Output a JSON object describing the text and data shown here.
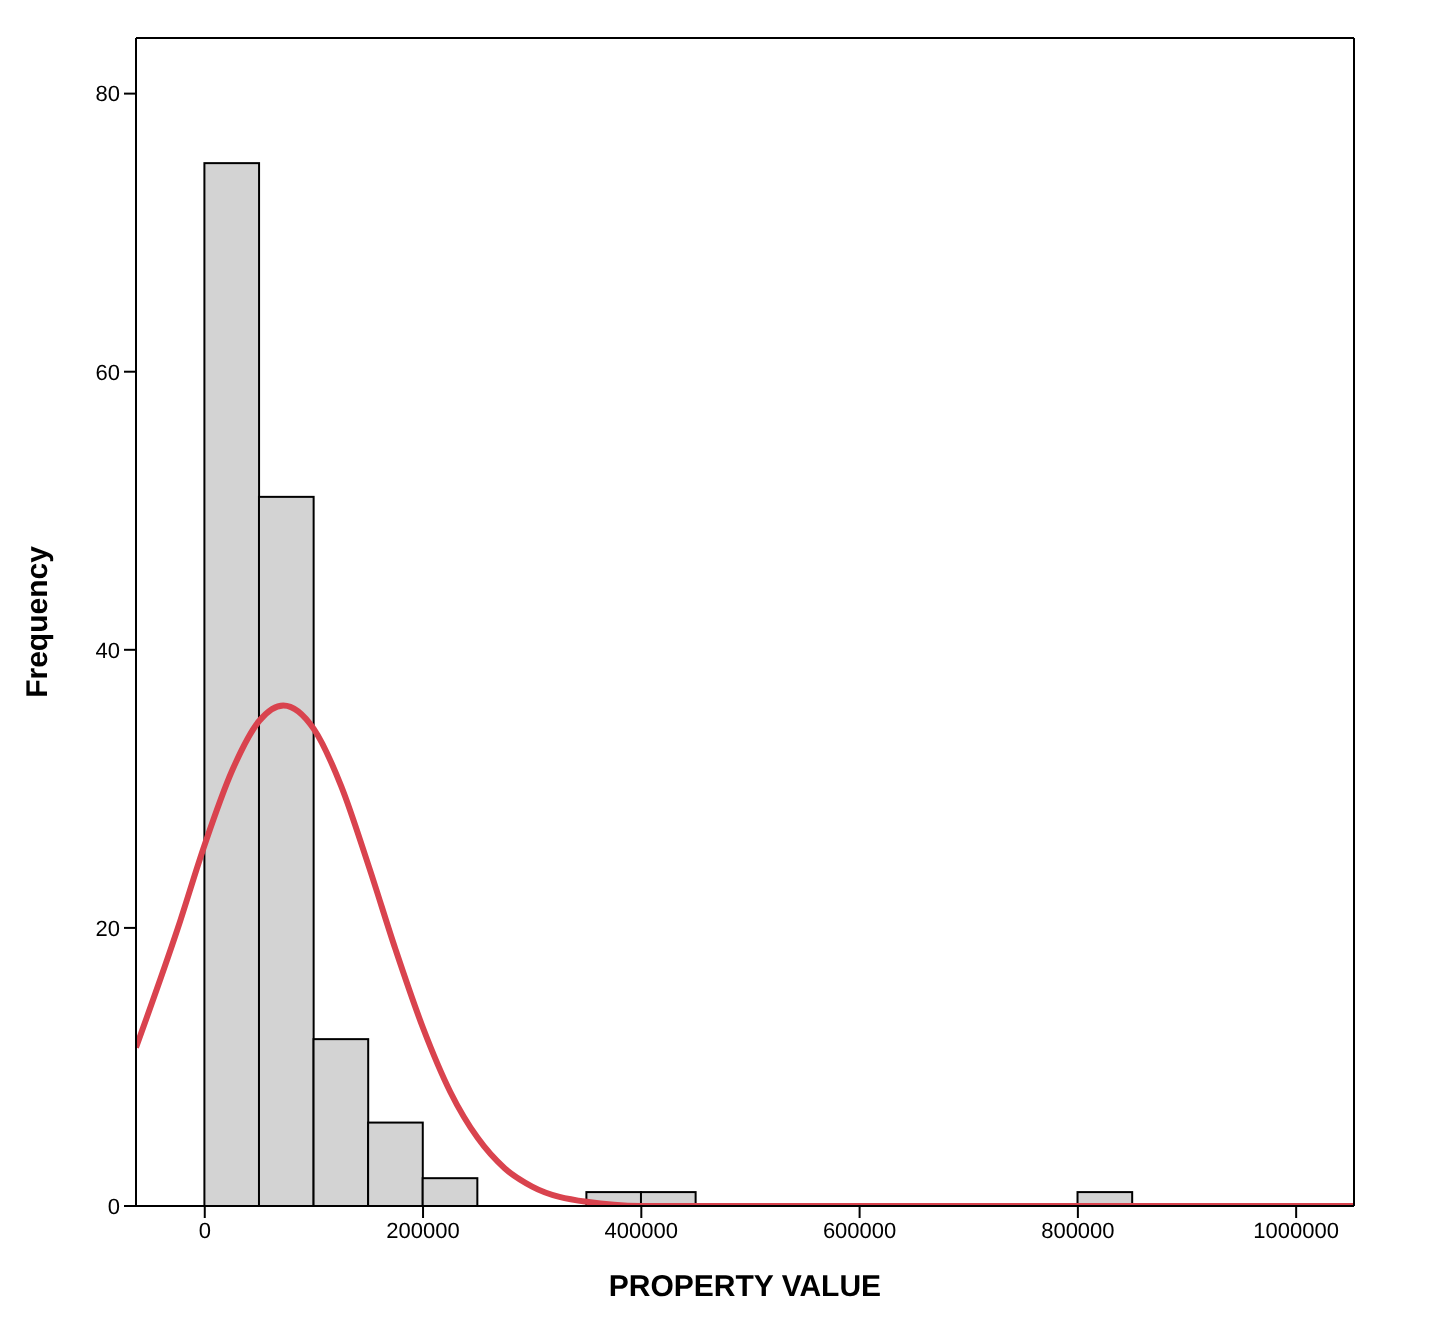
{
  "chart_data": {
    "type": "histogram",
    "xlabel": "PROPERTY VALUE",
    "ylabel": "Frequency",
    "bins": [
      0,
      50000,
      100000,
      150000,
      200000,
      250000,
      300000,
      350000,
      400000,
      450000,
      500000,
      550000,
      600000,
      650000,
      700000,
      750000,
      800000,
      850000
    ],
    "values": [
      75,
      51,
      12,
      6,
      2,
      0,
      0,
      1,
      1,
      0,
      0,
      0,
      0,
      0,
      0,
      0,
      1
    ],
    "color": "#d3d3d3",
    "series": [
      {
        "type": "line",
        "color": "#d9434e",
        "x": [
          -63000,
          -25000,
          0,
          25000,
          50000,
          72000,
          100000,
          125000,
          150000,
          175000,
          200000,
          225000,
          250000,
          275000,
          300000,
          350000,
          400000,
          1053000
        ],
        "values": [
          11.4,
          19.9,
          26,
          31.3,
          34.9,
          36,
          34.3,
          30.2,
          24.5,
          18.4,
          12.8,
          8.2,
          4.9,
          2.7,
          1.4,
          0.3,
          0,
          0
        ]
      }
    ],
    "xlim": [
      -63000,
      1053000
    ],
    "ylim": [
      0,
      84
    ],
    "xticks": [
      0,
      200000,
      400000,
      600000,
      800000,
      1000000
    ],
    "yticks": [
      0,
      20,
      40,
      60,
      80
    ]
  }
}
